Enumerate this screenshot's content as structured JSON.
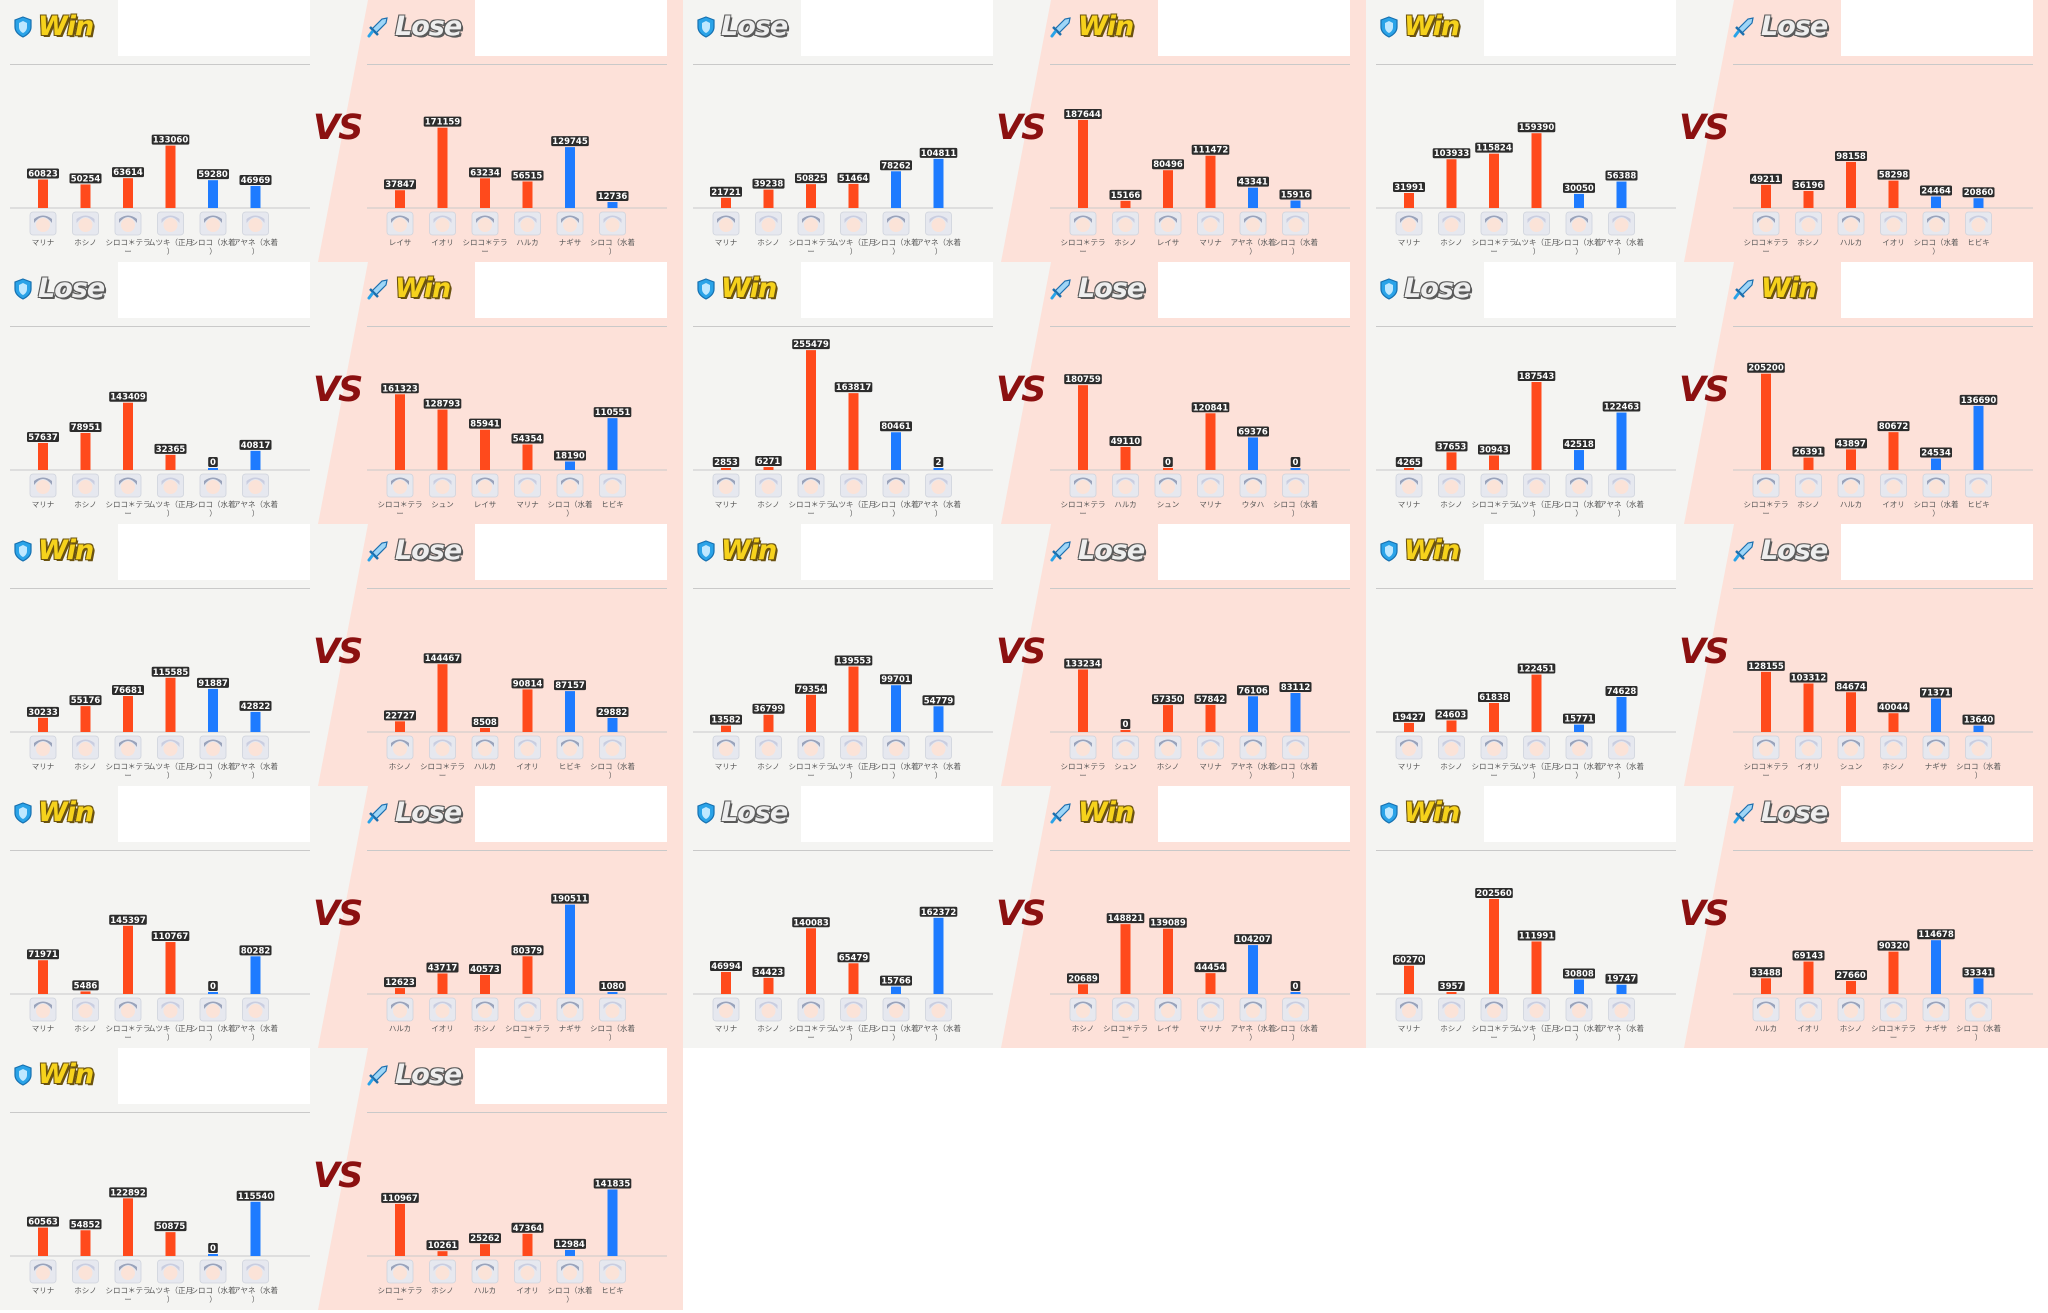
{
  "colors": {
    "ally_bar": "#ff4a1c",
    "support_bar": "#1e7bff",
    "left_bg": "#f4f4f2",
    "right_bg": "#fde1d9",
    "vs": "#8b1010",
    "win": "#f6d21c",
    "lose": "#eeeeee"
  },
  "vs_label": "VS",
  "icons": {
    "left": "shield-icon",
    "right": "sword-icon"
  },
  "matches": [
    {
      "left": {
        "result": "Win",
        "units": [
          [
            "マリナ",
            60823
          ],
          [
            "ホシノ",
            50254
          ],
          [
            "シロコ＊テラー",
            63614
          ],
          [
            "ムツキ（正月）",
            133060
          ],
          [
            "シロコ（水着）",
            59280
          ],
          [
            "アヤネ（水着）",
            46969
          ]
        ]
      },
      "right": {
        "result": "Lose",
        "units": [
          [
            "レイサ",
            37847
          ],
          [
            "イオリ",
            171159
          ],
          [
            "シロコ＊テラー",
            63234
          ],
          [
            "ハルカ",
            56515
          ],
          [
            "ナギサ",
            129745
          ],
          [
            "シロコ（水着）",
            12736
          ]
        ]
      }
    },
    {
      "left": {
        "result": "Lose",
        "units": [
          [
            "マリナ",
            21721
          ],
          [
            "ホシノ",
            39238
          ],
          [
            "シロコ＊テラー",
            50825
          ],
          [
            "ムツキ（正月）",
            51464
          ],
          [
            "シロコ（水着）",
            78262
          ],
          [
            "アヤネ（水着）",
            104811
          ]
        ]
      },
      "right": {
        "result": "Win",
        "units": [
          [
            "シロコ＊テラー",
            187644
          ],
          [
            "ホシノ",
            15166
          ],
          [
            "レイサ",
            80496
          ],
          [
            "マリナ",
            111472
          ],
          [
            "アヤネ（水着）",
            43341
          ],
          [
            "シロコ（水着）",
            15916
          ]
        ]
      }
    },
    {
      "left": {
        "result": "Win",
        "units": [
          [
            "マリナ",
            31991
          ],
          [
            "ホシノ",
            103933
          ],
          [
            "シロコ＊テラー",
            115824
          ],
          [
            "ムツキ（正月）",
            159390
          ],
          [
            "シロコ（水着）",
            30050
          ],
          [
            "アヤネ（水着）",
            56388
          ]
        ]
      },
      "right": {
        "result": "Lose",
        "units": [
          [
            "シロコ＊テラー",
            49211
          ],
          [
            "ホシノ",
            36196
          ],
          [
            "ハルカ",
            98158
          ],
          [
            "イオリ",
            58298
          ],
          [
            "シロコ（水着）",
            24464
          ],
          [
            "ヒビキ",
            20860
          ]
        ]
      }
    },
    {
      "left": {
        "result": "Lose",
        "units": [
          [
            "マリナ",
            57637
          ],
          [
            "ホシノ",
            78951
          ],
          [
            "シロコ＊テラー",
            143409
          ],
          [
            "ムツキ（正月）",
            32365
          ],
          [
            "シロコ（水着）",
            0
          ],
          [
            "アヤネ（水着）",
            40817
          ]
        ]
      },
      "right": {
        "result": "Win",
        "units": [
          [
            "シロコ＊テラー",
            161323
          ],
          [
            "シュン",
            128793
          ],
          [
            "レイサ",
            85941
          ],
          [
            "マリナ",
            54354
          ],
          [
            "シロコ（水着）",
            18190
          ],
          [
            "ヒビキ",
            110551
          ]
        ]
      }
    },
    {
      "left": {
        "result": "Win",
        "units": [
          [
            "マリナ",
            2853
          ],
          [
            "ホシノ",
            6271
          ],
          [
            "シロコ＊テラー",
            255479
          ],
          [
            "ムツキ（正月）",
            163817
          ],
          [
            "シロコ（水着）",
            80461
          ],
          [
            "アヤネ（水着）",
            2
          ]
        ]
      },
      "right": {
        "result": "Lose",
        "units": [
          [
            "シロコ＊テラー",
            180759
          ],
          [
            "ハルカ",
            49110
          ],
          [
            "シュン",
            0
          ],
          [
            "マリナ",
            120841
          ],
          [
            "ウタハ",
            69376
          ],
          [
            "シロコ（水着）",
            0
          ]
        ]
      }
    },
    {
      "left": {
        "result": "Lose",
        "units": [
          [
            "マリナ",
            4265
          ],
          [
            "ホシノ",
            37653
          ],
          [
            "シロコ＊テラー",
            30943
          ],
          [
            "ムツキ（正月）",
            187543
          ],
          [
            "シロコ（水着）",
            42518
          ],
          [
            "アヤネ（水着）",
            122463
          ]
        ]
      },
      "right": {
        "result": "Win",
        "units": [
          [
            "シロコ＊テラー",
            205200
          ],
          [
            "ホシノ",
            26391
          ],
          [
            "ハルカ",
            43897
          ],
          [
            "イオリ",
            80672
          ],
          [
            "シロコ（水着）",
            24534
          ],
          [
            "ヒビキ",
            136690
          ]
        ]
      }
    },
    {
      "left": {
        "result": "Win",
        "units": [
          [
            "マリナ",
            30233
          ],
          [
            "ホシノ",
            55176
          ],
          [
            "シロコ＊テラー",
            76681
          ],
          [
            "ムツキ（正月）",
            115585
          ],
          [
            "シロコ（水着）",
            91887
          ],
          [
            "アヤネ（水着）",
            42822
          ]
        ]
      },
      "right": {
        "result": "Lose",
        "units": [
          [
            "ホシノ",
            22727
          ],
          [
            "シロコ＊テラー",
            144467
          ],
          [
            "ハルカ",
            8508
          ],
          [
            "イオリ",
            90814
          ],
          [
            "ヒビキ",
            87157
          ],
          [
            "シロコ（水着）",
            29882
          ]
        ]
      }
    },
    {
      "left": {
        "result": "Win",
        "units": [
          [
            "マリナ",
            13582
          ],
          [
            "ホシノ",
            36799
          ],
          [
            "シロコ＊テラー",
            79354
          ],
          [
            "ムツキ（正月）",
            139553
          ],
          [
            "シロコ（水着）",
            99701
          ],
          [
            "アヤネ（水着）",
            54779
          ]
        ]
      },
      "right": {
        "result": "Lose",
        "units": [
          [
            "シロコ＊テラー",
            133234
          ],
          [
            "シュン",
            0
          ],
          [
            "ホシノ",
            57350
          ],
          [
            "マリナ",
            57842
          ],
          [
            "アヤネ（水着）",
            76106
          ],
          [
            "シロコ（水着）",
            83112
          ]
        ]
      }
    },
    {
      "left": {
        "result": "Win",
        "units": [
          [
            "マリナ",
            19427
          ],
          [
            "ホシノ",
            24603
          ],
          [
            "シロコ＊テラー",
            61838
          ],
          [
            "ムツキ（正月）",
            122451
          ],
          [
            "シロコ（水着）",
            15771
          ],
          [
            "アヤネ（水着）",
            74628
          ]
        ]
      },
      "right": {
        "result": "Lose",
        "units": [
          [
            "シロコ＊テラー",
            128155
          ],
          [
            "イオリ",
            103312
          ],
          [
            "シュン",
            84674
          ],
          [
            "ホシノ",
            40044
          ],
          [
            "ナギサ",
            71371
          ],
          [
            "シロコ（水着）",
            13640
          ]
        ]
      }
    },
    {
      "left": {
        "result": "Win",
        "units": [
          [
            "マリナ",
            71971
          ],
          [
            "ホシノ",
            5486
          ],
          [
            "シロコ＊テラー",
            145397
          ],
          [
            "ムツキ（正月）",
            110767
          ],
          [
            "シロコ（水着）",
            0
          ],
          [
            "アヤネ（水着）",
            80282
          ]
        ]
      },
      "right": {
        "result": "Lose",
        "units": [
          [
            "ハルカ",
            12623
          ],
          [
            "イオリ",
            43717
          ],
          [
            "ホシノ",
            40573
          ],
          [
            "シロコ＊テラー",
            80379
          ],
          [
            "ナギサ",
            190511
          ],
          [
            "シロコ（水着）",
            1080
          ]
        ]
      }
    },
    {
      "left": {
        "result": "Lose",
        "units": [
          [
            "マリナ",
            46994
          ],
          [
            "ホシノ",
            34423
          ],
          [
            "シロコ＊テラー",
            140083
          ],
          [
            "ムツキ（正月）",
            65479
          ],
          [
            "シロコ（水着）",
            15766
          ],
          [
            "アヤネ（水着）",
            162372
          ]
        ]
      },
      "right": {
        "result": "Win",
        "units": [
          [
            "ホシノ",
            20689
          ],
          [
            "シロコ＊テラー",
            148821
          ],
          [
            "レイサ",
            139089
          ],
          [
            "マリナ",
            44454
          ],
          [
            "アヤネ（水着）",
            104207
          ],
          [
            "シロコ（水着）",
            0
          ]
        ]
      }
    },
    {
      "left": {
        "result": "Win",
        "units": [
          [
            "マリナ",
            60270
          ],
          [
            "ホシノ",
            3957
          ],
          [
            "シロコ＊テラー",
            202560
          ],
          [
            "ムツキ（正月）",
            111991
          ],
          [
            "シロコ（水着）",
            30808
          ],
          [
            "アヤネ（水着）",
            19747
          ]
        ]
      },
      "right": {
        "result": "Lose",
        "units": [
          [
            "ハルカ",
            33488
          ],
          [
            "イオリ",
            69143
          ],
          [
            "ホシノ",
            27660
          ],
          [
            "シロコ＊テラー",
            90320
          ],
          [
            "ナギサ",
            114678
          ],
          [
            "シロコ（水着）",
            33341
          ]
        ]
      }
    },
    {
      "left": {
        "result": "Win",
        "units": [
          [
            "マリナ",
            60563
          ],
          [
            "ホシノ",
            54852
          ],
          [
            "シロコ＊テラー",
            122892
          ],
          [
            "ムツキ（正月）",
            50875
          ],
          [
            "シロコ（水着）",
            0
          ],
          [
            "アヤネ（水着）",
            115540
          ]
        ]
      },
      "right": {
        "result": "Lose",
        "units": [
          [
            "シロコ＊テラー",
            110967
          ],
          [
            "ホシノ",
            10261
          ],
          [
            "ハルカ",
            25262
          ],
          [
            "イオリ",
            47364
          ],
          [
            "シロコ（水着）",
            12984
          ],
          [
            "ヒビキ",
            141835
          ]
        ]
      }
    }
  ]
}
